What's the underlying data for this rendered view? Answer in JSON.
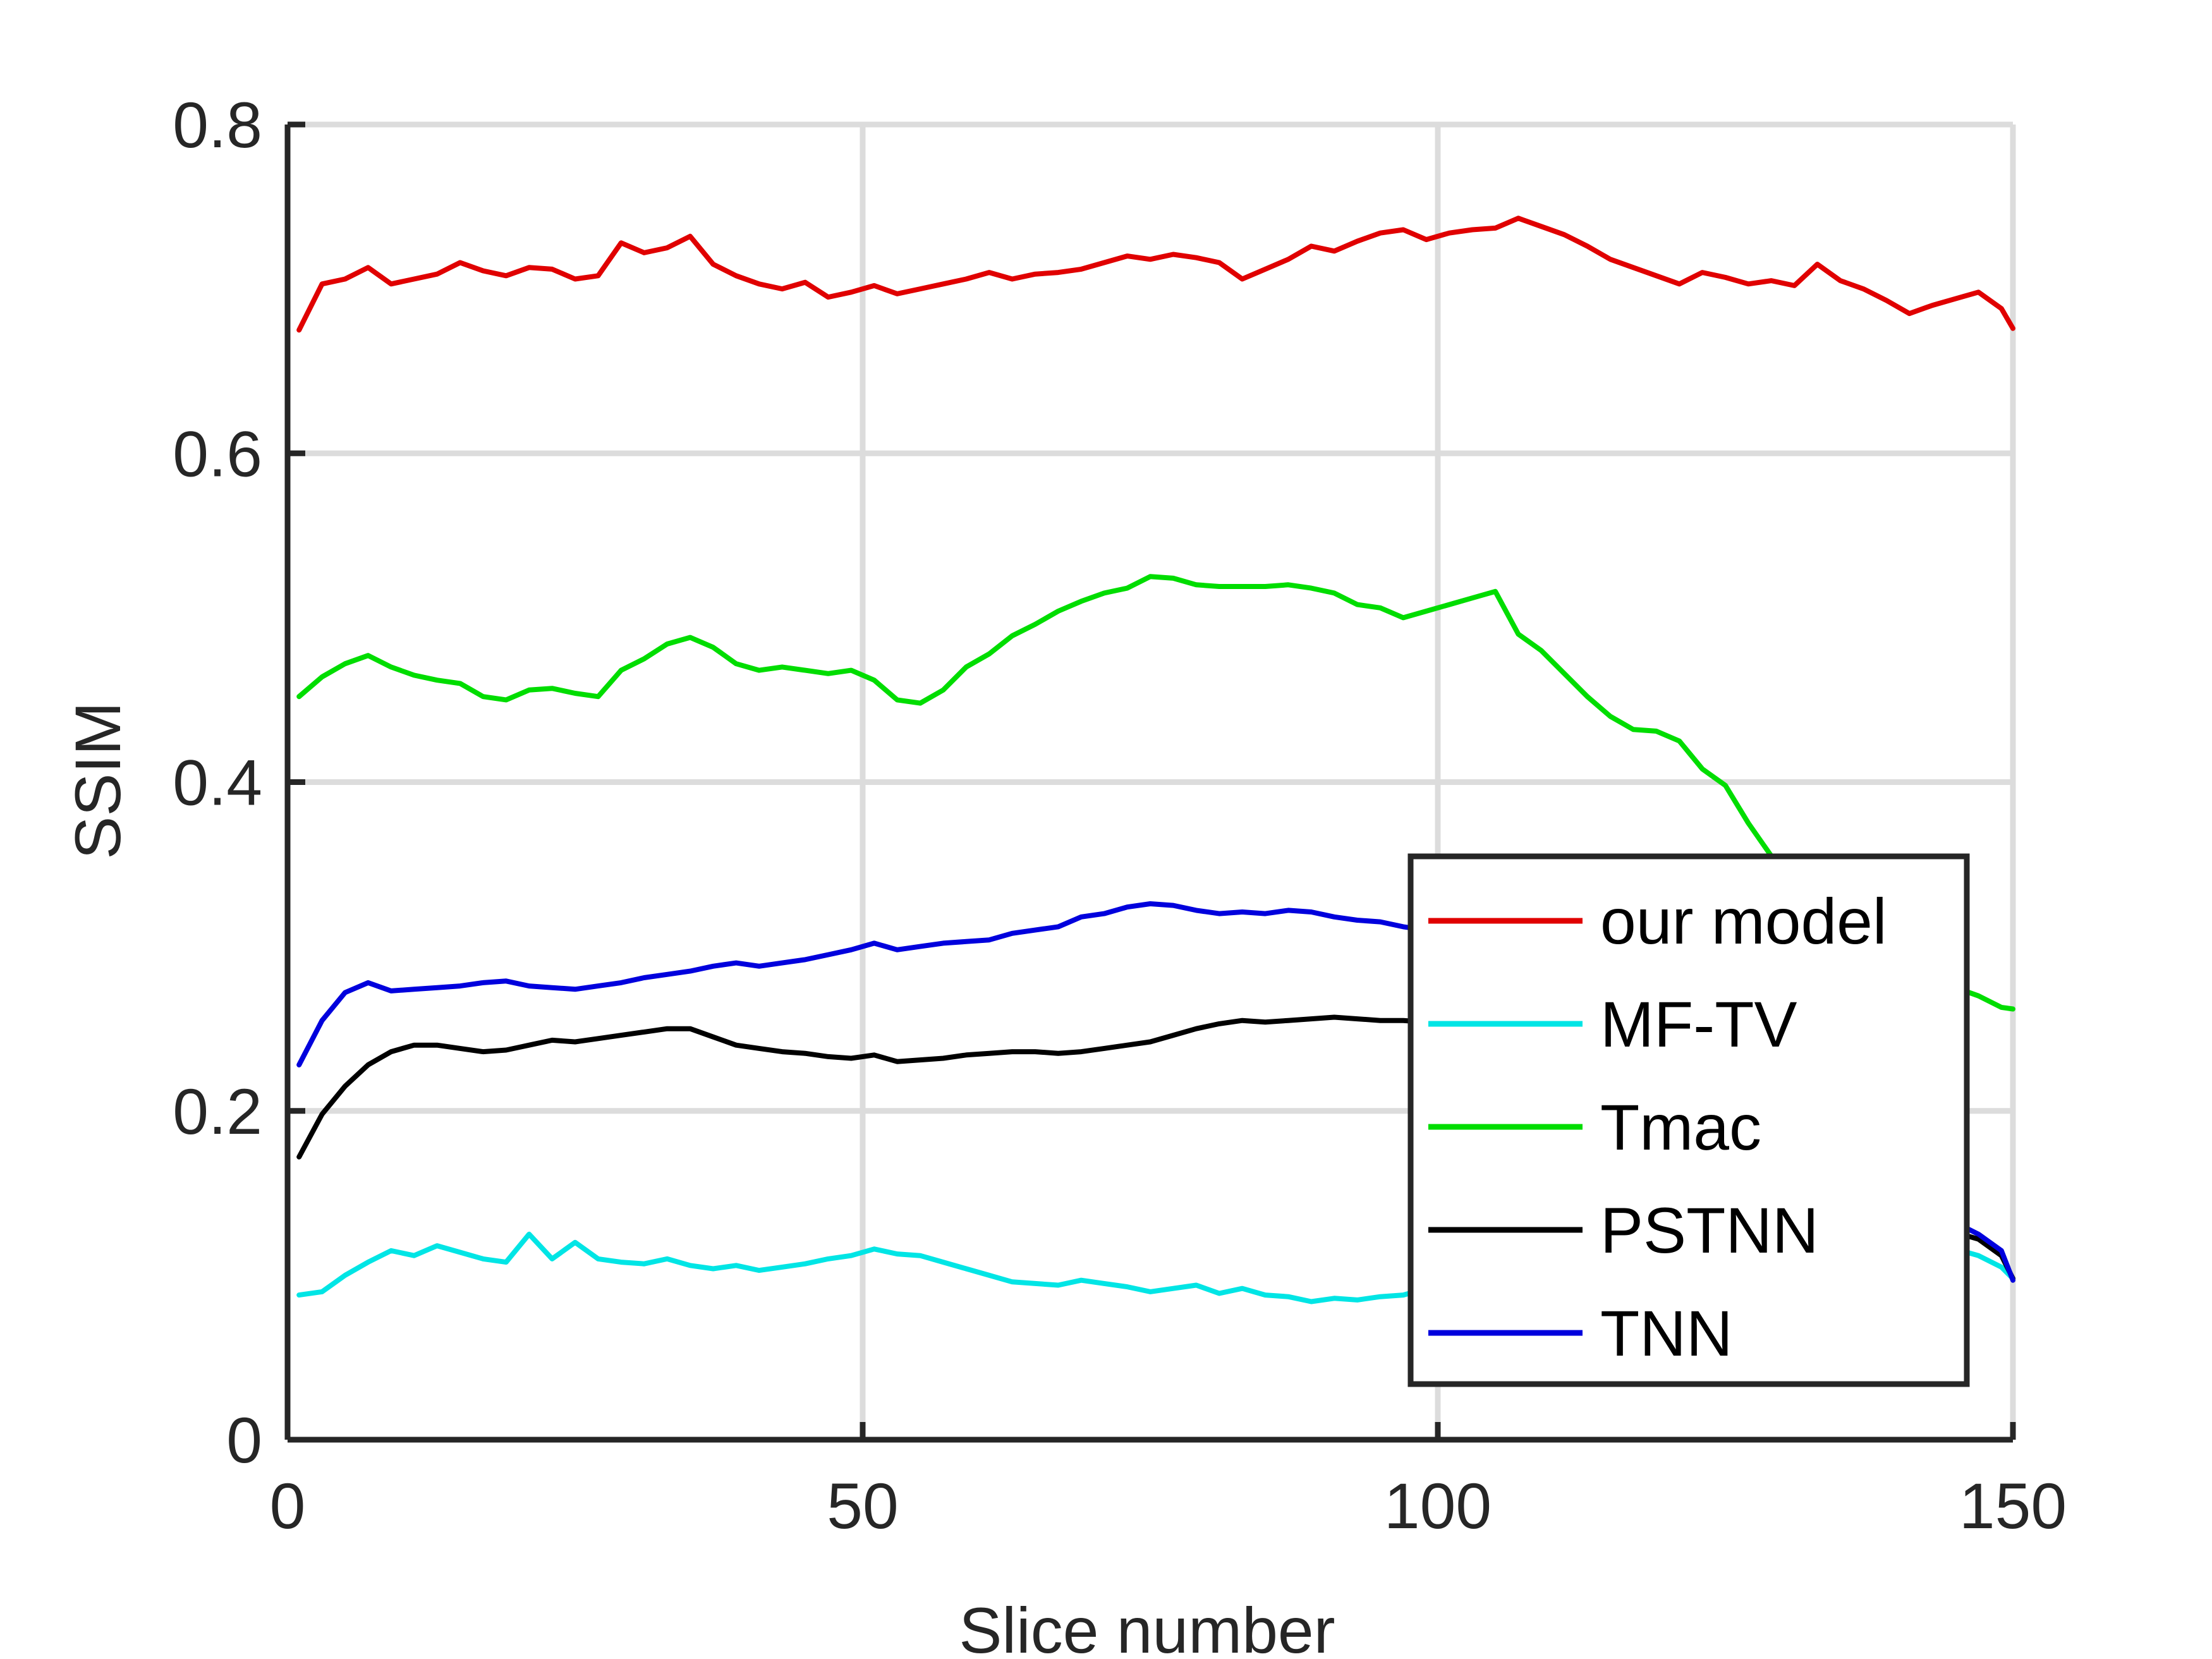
{
  "chart_data": {
    "type": "line",
    "title": "",
    "xlabel": "Slice number",
    "ylabel": "SSIM",
    "xlim": [
      0,
      150
    ],
    "ylim": [
      0,
      0.8
    ],
    "xticks": [
      "0",
      "50",
      "100",
      "150"
    ],
    "yticks": [
      "0",
      "0.2",
      "0.4",
      "0.6",
      "0.8"
    ],
    "grid": true,
    "legend_position": "bottom-right",
    "x": [
      1,
      3,
      5,
      7,
      9,
      11,
      13,
      15,
      17,
      19,
      21,
      23,
      25,
      27,
      29,
      31,
      33,
      35,
      37,
      39,
      41,
      43,
      45,
      47,
      49,
      51,
      53,
      55,
      57,
      59,
      61,
      63,
      65,
      67,
      69,
      71,
      73,
      75,
      77,
      79,
      81,
      83,
      85,
      87,
      89,
      91,
      93,
      95,
      97,
      99,
      101,
      103,
      105,
      107,
      109,
      111,
      113,
      115,
      117,
      119,
      121,
      123,
      125,
      127,
      129,
      131,
      133,
      135,
      137,
      139,
      141,
      143,
      145,
      147,
      149,
      150
    ],
    "series": [
      {
        "name": "our model",
        "color": "#e00000",
        "values": [
          0.675,
          0.703,
          0.706,
          0.713,
          0.703,
          0.706,
          0.709,
          0.716,
          0.711,
          0.708,
          0.713,
          0.712,
          0.706,
          0.708,
          0.728,
          0.722,
          0.725,
          0.732,
          0.715,
          0.708,
          0.703,
          0.7,
          0.704,
          0.695,
          0.698,
          0.702,
          0.697,
          0.7,
          0.703,
          0.706,
          0.71,
          0.706,
          0.709,
          0.71,
          0.712,
          0.716,
          0.72,
          0.718,
          0.721,
          0.719,
          0.716,
          0.706,
          0.712,
          0.718,
          0.726,
          0.723,
          0.729,
          0.734,
          0.736,
          0.73,
          0.734,
          0.736,
          0.737,
          0.743,
          0.738,
          0.733,
          0.726,
          0.718,
          0.713,
          0.708,
          0.703,
          0.71,
          0.707,
          0.703,
          0.705,
          0.702,
          0.715,
          0.705,
          0.7,
          0.693,
          0.685,
          0.69,
          0.694,
          0.698,
          0.688,
          0.676
        ]
      },
      {
        "name": "MF-TV",
        "color": "#00e5e5",
        "values": [
          0.088,
          0.09,
          0.1,
          0.108,
          0.115,
          0.112,
          0.118,
          0.114,
          0.11,
          0.108,
          0.125,
          0.11,
          0.12,
          0.11,
          0.108,
          0.107,
          0.11,
          0.106,
          0.104,
          0.106,
          0.103,
          0.105,
          0.107,
          0.11,
          0.112,
          0.116,
          0.113,
          0.112,
          0.108,
          0.104,
          0.1,
          0.096,
          0.095,
          0.094,
          0.097,
          0.095,
          0.093,
          0.09,
          0.092,
          0.094,
          0.089,
          0.092,
          0.088,
          0.087,
          0.084,
          0.086,
          0.085,
          0.087,
          0.088,
          0.092,
          0.091,
          0.09,
          0.092,
          0.093,
          0.095,
          0.097,
          0.098,
          0.099,
          0.098,
          0.097,
          0.096,
          0.098,
          0.1,
          0.101,
          0.102,
          0.103,
          0.104,
          0.106,
          0.108,
          0.11,
          0.112,
          0.114,
          0.116,
          0.112,
          0.105,
          0.098
        ]
      },
      {
        "name": "Tmac",
        "color": "#00dd00",
        "values": [
          0.452,
          0.464,
          0.472,
          0.477,
          0.47,
          0.465,
          0.462,
          0.46,
          0.452,
          0.45,
          0.456,
          0.457,
          0.454,
          0.452,
          0.468,
          0.475,
          0.484,
          0.488,
          0.482,
          0.472,
          0.468,
          0.47,
          0.468,
          0.466,
          0.468,
          0.462,
          0.45,
          0.448,
          0.456,
          0.47,
          0.478,
          0.489,
          0.496,
          0.504,
          0.51,
          0.515,
          0.518,
          0.525,
          0.524,
          0.52,
          0.519,
          0.519,
          0.519,
          0.52,
          0.518,
          0.515,
          0.508,
          0.506,
          0.5,
          0.504,
          0.508,
          0.512,
          0.516,
          0.49,
          0.48,
          0.466,
          0.452,
          0.44,
          0.432,
          0.431,
          0.425,
          0.408,
          0.398,
          0.375,
          0.355,
          0.34,
          0.325,
          0.31,
          0.295,
          0.285,
          0.28,
          0.277,
          0.275,
          0.27,
          0.263,
          0.262
        ]
      },
      {
        "name": "PSTNN",
        "color": "#000000",
        "values": [
          0.172,
          0.198,
          0.215,
          0.228,
          0.236,
          0.24,
          0.24,
          0.238,
          0.236,
          0.237,
          0.24,
          0.243,
          0.242,
          0.244,
          0.246,
          0.248,
          0.25,
          0.25,
          0.245,
          0.24,
          0.238,
          0.236,
          0.235,
          0.233,
          0.232,
          0.234,
          0.23,
          0.231,
          0.232,
          0.234,
          0.235,
          0.236,
          0.236,
          0.235,
          0.236,
          0.238,
          0.24,
          0.242,
          0.246,
          0.25,
          0.253,
          0.255,
          0.254,
          0.255,
          0.256,
          0.257,
          0.256,
          0.255,
          0.255,
          0.254,
          0.253,
          0.252,
          0.25,
          0.248,
          0.246,
          0.242,
          0.238,
          0.234,
          0.23,
          0.226,
          0.22,
          0.212,
          0.205,
          0.198,
          0.19,
          0.18,
          0.17,
          0.16,
          0.15,
          0.142,
          0.135,
          0.13,
          0.126,
          0.122,
          0.112,
          0.098
        ]
      },
      {
        "name": "TNN",
        "color": "#0000dd",
        "values": [
          0.228,
          0.255,
          0.272,
          0.278,
          0.273,
          0.274,
          0.275,
          0.276,
          0.278,
          0.279,
          0.276,
          0.275,
          0.274,
          0.276,
          0.278,
          0.281,
          0.283,
          0.285,
          0.288,
          0.29,
          0.288,
          0.29,
          0.292,
          0.295,
          0.298,
          0.302,
          0.298,
          0.3,
          0.302,
          0.303,
          0.304,
          0.308,
          0.31,
          0.312,
          0.318,
          0.32,
          0.324,
          0.326,
          0.325,
          0.322,
          0.32,
          0.321,
          0.32,
          0.322,
          0.321,
          0.318,
          0.316,
          0.315,
          0.312,
          0.31,
          0.305,
          0.3,
          0.295,
          0.29,
          0.285,
          0.28,
          0.275,
          0.268,
          0.26,
          0.252,
          0.244,
          0.236,
          0.228,
          0.218,
          0.208,
          0.198,
          0.188,
          0.178,
          0.168,
          0.158,
          0.148,
          0.14,
          0.132,
          0.125,
          0.115,
          0.097
        ]
      }
    ]
  }
}
